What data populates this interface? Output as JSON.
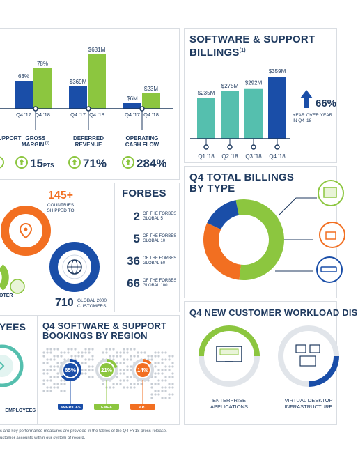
{
  "colors": {
    "navy": "#1f3a5f",
    "blue": "#1a4ea8",
    "green": "#8cc63f",
    "teal": "#55bfae",
    "orange": "#f26f21",
    "grey": "#d9dde2"
  },
  "left_top": {
    "groups": [
      {
        "prior_label": "Q4 '17",
        "current_label": "Q4 '18",
        "prior_value": "63%",
        "current_value": "78%",
        "prior": 0.63,
        "current": 0.78
      },
      {
        "prior_label": "Q4 '17",
        "current_label": "Q4 '18",
        "prior_value": "$369M",
        "current_value": "$631M",
        "prior": 369,
        "current": 631
      },
      {
        "prior_label": "Q4 '17",
        "current_label": "Q4 '18",
        "prior_value": "$6M",
        "current_value": "$23M",
        "prior": 6,
        "current": 23
      }
    ],
    "metrics": [
      {
        "label": "UPPORT",
        "note": "",
        "value": ""
      },
      {
        "label": "GROSS",
        "label2": "MARGIN",
        "note": "(1)",
        "value": "15",
        "unit": "PTS"
      },
      {
        "label": "DEFERRED",
        "label2": "REVENUE",
        "note": "",
        "value": "71%",
        "unit": ""
      },
      {
        "label": "OPERATING",
        "label2": "CASH FLOW",
        "note": "",
        "value": "284%",
        "unit": ""
      }
    ]
  },
  "software_support": {
    "title_line1": "SOFTWARE & SUPPORT",
    "title_line2": "BILLINGS",
    "title_note": "(1)",
    "chart_data": {
      "type": "bar",
      "categories": [
        "Q1 '18",
        "Q2 '18",
        "Q3 '18",
        "Q4 '18"
      ],
      "values": [
        235,
        275,
        292,
        359
      ],
      "value_labels": [
        "$235M",
        "$275M",
        "$292M",
        "$359M"
      ],
      "ylim": [
        0,
        400
      ]
    },
    "growth_value": "66%",
    "growth_text_1": "YEAR OVER YEAR",
    "growth_text_2": "IN Q4 '18"
  },
  "reach": {
    "countries_value": "145+",
    "countries_text_1": "COUNTRIES",
    "countries_text_2": "SHIPPED TO",
    "customers_value": "710",
    "customers_text_1": "GLOBAL 2000",
    "customers_text_2": "CUSTOMERS",
    "left_label": "OTER"
  },
  "forbes": {
    "title": "FORBES",
    "items": [
      {
        "value": "2",
        "line1": "OF THE FORBES",
        "line2": "GLOBAL 5"
      },
      {
        "value": "5",
        "line1": "OF THE FORBES",
        "line2": "GLOBAL 10"
      },
      {
        "value": "36",
        "line1": "OF THE FORBES",
        "line2": "GLOBAL 50"
      },
      {
        "value": "66",
        "line1": "OF THE FORBES",
        "line2": "GLOBAL 100"
      }
    ]
  },
  "billings_type": {
    "title_line1": "Q4 TOTAL BILLINGS",
    "title_line2": "BY TYPE",
    "chart_data": {
      "type": "pie",
      "slices": [
        {
          "color": "#8cc63f",
          "value": 0.55
        },
        {
          "color": "#f26f21",
          "value": 0.3
        },
        {
          "color": "#1a4ea8",
          "value": 0.15
        }
      ]
    }
  },
  "employees": {
    "title": "YEES",
    "label": "EMPLOYEES"
  },
  "bookings": {
    "title_line1": "Q4 SOFTWARE & SUPPORT",
    "title_line2": "BOOKINGS BY REGION",
    "regions": [
      {
        "value": "65%",
        "label": "AMERICAS",
        "fraction": 0.65
      },
      {
        "value": "21%",
        "label": "EMEA",
        "fraction": 0.21
      },
      {
        "value": "14%",
        "label": "APJ",
        "fraction": 0.14
      }
    ]
  },
  "workload": {
    "title": "Q4 NEW CUSTOMER WORKLOAD DIS",
    "items": [
      {
        "line1": "ENTERPRISE",
        "line2": "APPLICATIONS"
      },
      {
        "line1": "VIRTUAL DESKTOP",
        "line2": "INFRASTRUCTURE"
      }
    ]
  },
  "footnotes": {
    "line1": "s and key performance measures are provided in the tables of the Q4 FY18 press release.",
    "line2": "ustomer accounts within our system of record."
  }
}
